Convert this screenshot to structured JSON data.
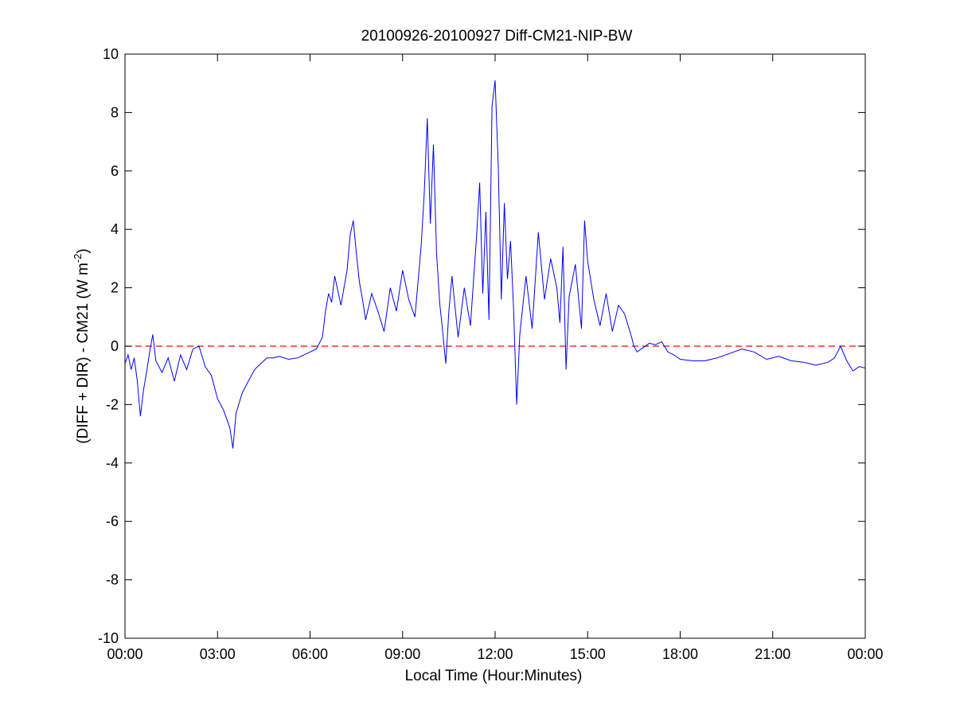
{
  "chart_data": {
    "type": "line",
    "title": "20100926-20100927 Diff-CM21-NIP-BW",
    "xlabel": "Local Time (Hour:Minutes)",
    "ylabel_main": "(DIFF + DIR) - CM21 (W m",
    "ylabel_sup": "-2",
    "ylabel_end": ")",
    "xlim": [
      0,
      24
    ],
    "ylim": [
      -10,
      10
    ],
    "x_ticks": [
      0,
      3,
      6,
      9,
      12,
      15,
      18,
      21,
      24
    ],
    "x_tick_labels": [
      "00:00",
      "03:00",
      "06:00",
      "09:00",
      "12:00",
      "15:00",
      "18:00",
      "21:00",
      "00:00"
    ],
    "y_ticks": [
      -10,
      -8,
      -6,
      -4,
      -2,
      0,
      2,
      4,
      6,
      8,
      10
    ],
    "y_tick_labels": [
      "-10",
      "-8",
      "-6",
      "-4",
      "-2",
      "0",
      "2",
      "4",
      "6",
      "8",
      "10"
    ],
    "grid": false,
    "reference_line": {
      "y": 0,
      "color": "#ff0000",
      "style": "dashed"
    },
    "series": [
      {
        "color": "#0000ff",
        "x": [
          0.0,
          0.1,
          0.2,
          0.3,
          0.4,
          0.5,
          0.6,
          0.7,
          0.8,
          0.9,
          1.0,
          1.2,
          1.4,
          1.6,
          1.8,
          2.0,
          2.2,
          2.4,
          2.6,
          2.8,
          3.0,
          3.2,
          3.4,
          3.5,
          3.6,
          3.8,
          4.0,
          4.2,
          4.4,
          4.6,
          4.8,
          5.0,
          5.3,
          5.6,
          5.9,
          6.2,
          6.4,
          6.5,
          6.6,
          6.7,
          6.8,
          6.9,
          7.0,
          7.2,
          7.3,
          7.4,
          7.5,
          7.6,
          7.7,
          7.8,
          8.0,
          8.2,
          8.4,
          8.6,
          8.8,
          9.0,
          9.2,
          9.4,
          9.6,
          9.7,
          9.8,
          9.9,
          10.0,
          10.1,
          10.2,
          10.3,
          10.4,
          10.5,
          10.6,
          10.8,
          11.0,
          11.2,
          11.4,
          11.5,
          11.6,
          11.7,
          11.8,
          11.9,
          12.0,
          12.1,
          12.2,
          12.3,
          12.4,
          12.5,
          12.6,
          12.7,
          12.8,
          13.0,
          13.2,
          13.4,
          13.6,
          13.8,
          14.0,
          14.1,
          14.2,
          14.3,
          14.4,
          14.6,
          14.8,
          14.9,
          15.0,
          15.2,
          15.4,
          15.6,
          15.8,
          16.0,
          16.2,
          16.4,
          16.5,
          16.6,
          16.8,
          17.0,
          17.2,
          17.4,
          17.6,
          17.8,
          18.0,
          18.4,
          18.8,
          19.2,
          19.6,
          20.0,
          20.4,
          20.8,
          21.2,
          21.6,
          22.0,
          22.4,
          22.8,
          23.0,
          23.2,
          23.4,
          23.6,
          23.8,
          24.0
        ],
        "y": [
          -0.6,
          -0.3,
          -0.8,
          -0.4,
          -1.2,
          -2.4,
          -1.5,
          -0.9,
          -0.2,
          0.4,
          -0.5,
          -0.9,
          -0.4,
          -1.2,
          -0.3,
          -0.8,
          -0.1,
          0.0,
          -0.7,
          -1.0,
          -1.8,
          -2.2,
          -2.8,
          -3.5,
          -2.3,
          -1.6,
          -1.2,
          -0.8,
          -0.6,
          -0.4,
          -0.4,
          -0.35,
          -0.45,
          -0.4,
          -0.25,
          -0.1,
          0.3,
          1.2,
          1.8,
          1.5,
          2.4,
          1.9,
          1.4,
          2.6,
          3.8,
          4.3,
          3.2,
          2.2,
          1.6,
          0.9,
          1.8,
          1.2,
          0.5,
          2.0,
          1.2,
          2.6,
          1.6,
          1.0,
          3.4,
          5.2,
          7.8,
          4.2,
          6.9,
          3.2,
          1.5,
          0.5,
          -0.6,
          1.2,
          2.4,
          0.3,
          2.0,
          0.7,
          3.8,
          5.6,
          1.8,
          4.6,
          0.9,
          8.2,
          9.1,
          6.2,
          1.6,
          4.9,
          2.3,
          3.6,
          1.2,
          -2.0,
          0.4,
          2.4,
          0.6,
          3.9,
          1.6,
          3.0,
          2.0,
          0.8,
          3.4,
          -0.8,
          1.7,
          2.8,
          0.6,
          4.3,
          2.9,
          1.6,
          0.7,
          1.8,
          0.5,
          1.4,
          1.1,
          0.4,
          0.0,
          -0.2,
          -0.05,
          0.1,
          0.05,
          0.15,
          -0.2,
          -0.3,
          -0.45,
          -0.5,
          -0.5,
          -0.4,
          -0.25,
          -0.1,
          -0.2,
          -0.45,
          -0.35,
          -0.5,
          -0.55,
          -0.65,
          -0.55,
          -0.4,
          0.0,
          -0.5,
          -0.85,
          -0.7,
          -0.75
        ]
      }
    ]
  }
}
